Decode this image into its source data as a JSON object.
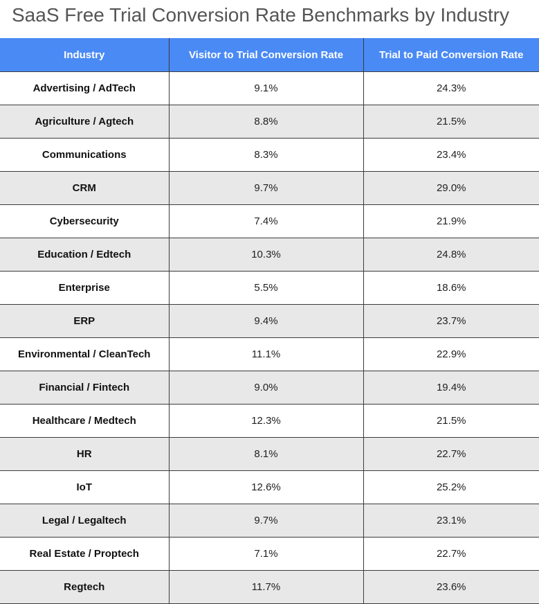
{
  "chart_data": {
    "type": "table",
    "title": "SaaS Free Trial Conversion Rate Benchmarks by Industry",
    "columns": [
      "Industry",
      "Visitor to Trial Conversion Rate",
      "Trial to Paid Conversion Rate"
    ],
    "rows": [
      [
        "Advertising / AdTech",
        "9.1%",
        "24.3%"
      ],
      [
        "Agriculture / Agtech",
        "8.8%",
        "21.5%"
      ],
      [
        "Communications",
        "8.3%",
        "23.4%"
      ],
      [
        "CRM",
        "9.7%",
        "29.0%"
      ],
      [
        "Cybersecurity",
        "7.4%",
        "21.9%"
      ],
      [
        "Education / Edtech",
        "10.3%",
        "24.8%"
      ],
      [
        "Enterprise",
        "5.5%",
        "18.6%"
      ],
      [
        "ERP",
        "9.4%",
        "23.7%"
      ],
      [
        "Environmental / CleanTech",
        "11.1%",
        "22.9%"
      ],
      [
        "Financial / Fintech",
        "9.0%",
        "19.4%"
      ],
      [
        "Healthcare / Medtech",
        "12.3%",
        "21.5%"
      ],
      [
        "HR",
        "8.1%",
        "22.7%"
      ],
      [
        "IoT",
        "12.6%",
        "25.2%"
      ],
      [
        "Legal / Legaltech",
        "9.7%",
        "23.1%"
      ],
      [
        "Real Estate / Proptech",
        "7.1%",
        "22.7%"
      ],
      [
        "Regtech",
        "11.7%",
        "23.6%"
      ]
    ],
    "colors": {
      "header_bg": "#4a8af4",
      "header_text": "#ffffff",
      "row_alt_bg": "#e8e8e8",
      "title_text": "#555555"
    }
  }
}
